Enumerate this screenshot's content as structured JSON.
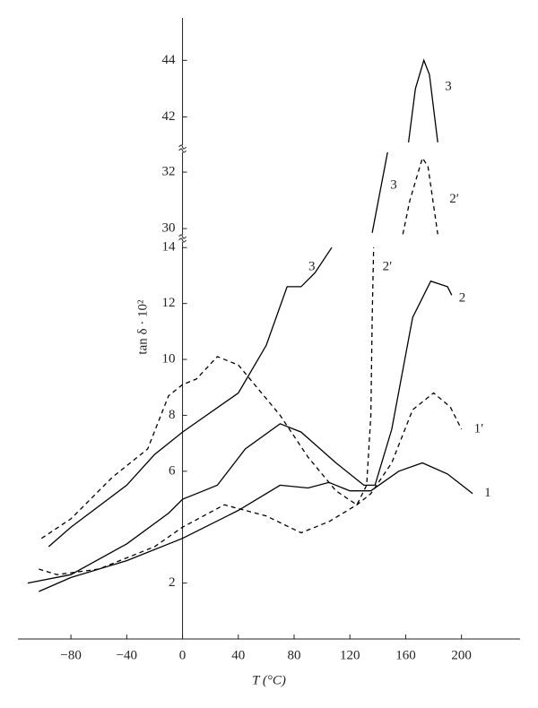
{
  "chart_data": {
    "type": "line",
    "x_label": "T (°C)",
    "y_label": "tan δ · 10²",
    "xlim": [
      -118,
      242
    ],
    "xticks": [
      {
        "value": -80,
        "label": "−80"
      },
      {
        "value": -40,
        "label": "−40"
      },
      0,
      40,
      80,
      120,
      160,
      200
    ],
    "y_segments": [
      {
        "ylim": [
          0,
          14.2
        ],
        "yticks": [
          2,
          6,
          8,
          10,
          12,
          14
        ]
      },
      {
        "ylim": [
          29.78,
          32.7
        ],
        "yticks": [
          30,
          32
        ]
      },
      {
        "ylim": [
          41,
          45.5
        ],
        "yticks": [
          42,
          44
        ]
      }
    ],
    "series": [
      {
        "name": "1",
        "color": "#000000",
        "dashed": false,
        "segment": 0,
        "x": [
          -103,
          -80,
          -40,
          0,
          40,
          70,
          90,
          105,
          120,
          135,
          155,
          172,
          190,
          208
        ],
        "values": [
          1.7,
          2.2,
          2.8,
          3.6,
          4.6,
          5.5,
          5.4,
          5.6,
          5.3,
          5.3,
          6.0,
          6.3,
          5.9,
          5.2
        ]
      },
      {
        "name": "1′",
        "color": "#000000",
        "dashed": true,
        "segment": 0,
        "x": [
          -103,
          -90,
          -60,
          -20,
          0,
          30,
          60,
          85,
          105,
          125,
          135,
          150,
          165,
          180,
          192,
          200
        ],
        "values": [
          2.5,
          2.3,
          2.5,
          3.3,
          4.0,
          4.8,
          4.4,
          3.8,
          4.2,
          4.8,
          5.2,
          6.3,
          8.2,
          8.8,
          8.3,
          7.5
        ]
      },
      {
        "name": "2",
        "color": "#000000",
        "dashed": false,
        "segment": 0,
        "x": [
          -111,
          -80,
          -40,
          -10,
          0,
          15,
          25,
          45,
          70,
          85,
          110,
          130,
          138,
          150,
          165,
          178,
          190,
          193
        ],
        "values": [
          2.0,
          2.3,
          3.4,
          4.5,
          5.0,
          5.3,
          5.5,
          6.8,
          7.7,
          7.4,
          6.3,
          5.5,
          5.5,
          7.5,
          11.5,
          12.8,
          12.6,
          12.3
        ]
      },
      {
        "name": "2′",
        "color": "#000000",
        "dashed": true,
        "segment": 0,
        "x": [
          -101,
          -80,
          -50,
          -25,
          -10,
          0,
          10,
          25,
          40,
          70,
          90,
          110,
          125,
          132,
          135,
          136,
          137
        ],
        "values": [
          3.6,
          4.3,
          5.8,
          6.8,
          8.7,
          9.1,
          9.3,
          10.1,
          9.8,
          8.0,
          6.5,
          5.3,
          4.8,
          5.5,
          8.0,
          11.5,
          14
        ]
      },
      {
        "name": "3",
        "color": "#000000",
        "dashed": false,
        "segment": 0,
        "x": [
          -96,
          -80,
          -40,
          -20,
          0,
          40,
          60,
          75,
          85,
          95,
          107
        ],
        "values": [
          3.3,
          4.0,
          5.5,
          6.6,
          7.4,
          8.8,
          10.5,
          12.6,
          12.6,
          13.1,
          14
        ]
      },
      {
        "name": "3",
        "color": "#000000",
        "dashed": false,
        "segment": 1,
        "x": [
          136,
          147
        ],
        "values": [
          29.85,
          32.7
        ]
      },
      {
        "name": "2′",
        "color": "#000000",
        "dashed": true,
        "segment": 1,
        "x": [
          158,
          163,
          172,
          176,
          183
        ],
        "values": [
          29.8,
          31.0,
          32.5,
          32.2,
          29.8
        ]
      },
      {
        "name": "3",
        "color": "#000000",
        "dashed": false,
        "segment": 2,
        "x": [
          162,
          167,
          173,
          177,
          183
        ],
        "values": [
          41.1,
          43.0,
          44.0,
          43.5,
          41.1
        ]
      }
    ]
  }
}
